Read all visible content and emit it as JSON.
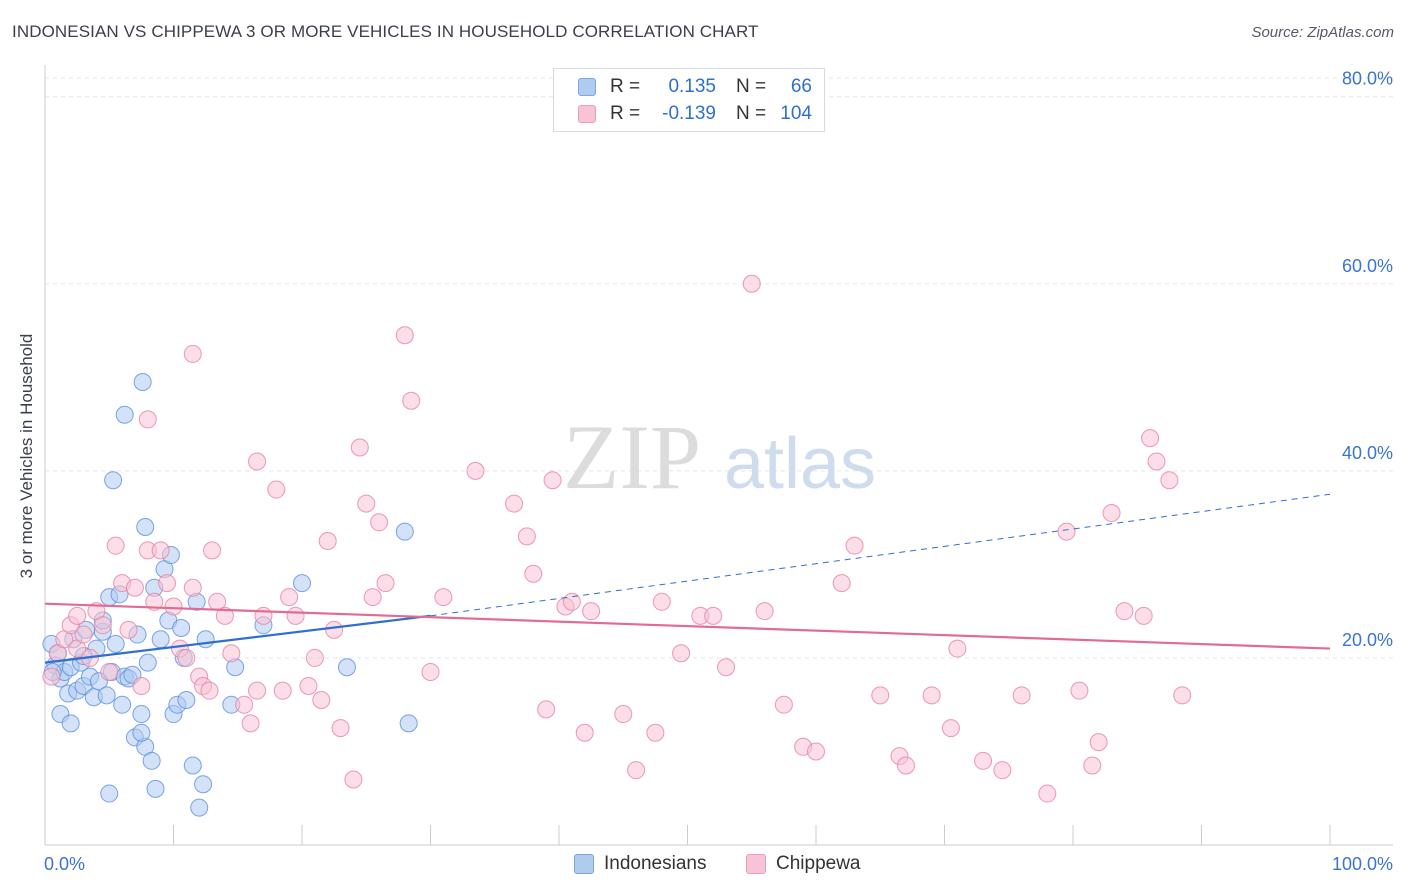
{
  "title": "INDONESIAN VS CHIPPEWA 3 OR MORE VEHICLES IN HOUSEHOLD CORRELATION CHART",
  "source": "Source: ZipAtlas.com",
  "watermark": {
    "zip": "ZIP",
    "atlas": "atlas"
  },
  "legend_top": {
    "rows": [
      {
        "r_label": "R =",
        "r_value": "0.135",
        "n_label": "N =",
        "n_value": "66",
        "color": "#aecbf0",
        "stroke": "#7fa6de"
      },
      {
        "r_label": "R =",
        "r_value": "-0.139",
        "n_label": "N =",
        "n_value": "104",
        "color": "#f8c3d4",
        "stroke": "#ee9cb8"
      }
    ]
  },
  "legend_bottom": [
    {
      "name": "Indonesians",
      "color": "#aecbf0",
      "stroke": "#7fa6de"
    },
    {
      "name": "Chippewa",
      "color": "#f8c3d4",
      "stroke": "#ee9cb8"
    }
  ],
  "chart_data": {
    "type": "scatter",
    "title": "INDONESIAN VS CHIPPEWA 3 OR MORE VEHICLES IN HOUSEHOLD CORRELATION CHART",
    "xlabel": "",
    "ylabel": "3 or more Vehicles in Household",
    "xlim": [
      0,
      100
    ],
    "ylim": [
      0,
      82
    ],
    "x_tick_labels": [
      "0.0%",
      "100.0%"
    ],
    "y_ticks": [
      20,
      40,
      60,
      80
    ],
    "y_tick_labels": [
      "20.0%",
      "40.0%",
      "60.0%",
      "80.0%"
    ],
    "grid": true,
    "legend_position": "top-center",
    "series": [
      {
        "name": "Indonesians",
        "color": "#5b8fe0",
        "fill": "#aecbf0",
        "trend": {
          "x0": 0,
          "y0": 19.5,
          "x1": 30,
          "y1": 24.5,
          "dash_to_x": 100,
          "dash_to_y": 37.5,
          "color": "#2f6fd0"
        },
        "points": [
          [
            0.5,
            21.5
          ],
          [
            0.8,
            19.2
          ],
          [
            1.0,
            20.5
          ],
          [
            1.2,
            17.8
          ],
          [
            1.5,
            18.5
          ],
          [
            1.8,
            16.2
          ],
          [
            2.0,
            19.0
          ],
          [
            2.2,
            22.0
          ],
          [
            2.5,
            16.5
          ],
          [
            2.8,
            19.5
          ],
          [
            3.0,
            17.0
          ],
          [
            3.2,
            23.0
          ],
          [
            3.5,
            18.0
          ],
          [
            3.8,
            15.8
          ],
          [
            4.0,
            21.0
          ],
          [
            4.2,
            17.5
          ],
          [
            4.5,
            22.8
          ],
          [
            4.8,
            16.0
          ],
          [
            5.0,
            26.5
          ],
          [
            5.2,
            18.5
          ],
          [
            5.5,
            21.5
          ],
          [
            5.8,
            26.8
          ],
          [
            6.0,
            15.0
          ],
          [
            6.2,
            18.0
          ],
          [
            6.5,
            17.8
          ],
          [
            6.8,
            18.2
          ],
          [
            7.0,
            11.5
          ],
          [
            7.2,
            22.5
          ],
          [
            7.5,
            14.0
          ],
          [
            7.8,
            10.5
          ],
          [
            8.0,
            19.5
          ],
          [
            8.3,
            9.0
          ],
          [
            8.6,
            6.0
          ],
          [
            9.0,
            22.0
          ],
          [
            9.3,
            29.5
          ],
          [
            9.6,
            24.0
          ],
          [
            10.0,
            14.0
          ],
          [
            10.3,
            15.0
          ],
          [
            10.6,
            23.2
          ],
          [
            11.0,
            15.5
          ],
          [
            11.5,
            8.5
          ],
          [
            12.0,
            4.0
          ],
          [
            12.3,
            6.5
          ],
          [
            7.5,
            12.0
          ],
          [
            5.0,
            5.5
          ],
          [
            5.3,
            39.0
          ],
          [
            6.2,
            46.0
          ],
          [
            7.6,
            49.5
          ],
          [
            7.8,
            34.0
          ],
          [
            9.8,
            31.0
          ],
          [
            11.8,
            26.0
          ],
          [
            12.5,
            22.0
          ],
          [
            14.5,
            15.0
          ],
          [
            14.8,
            19.0
          ],
          [
            17.0,
            23.5
          ],
          [
            20.0,
            28.0
          ],
          [
            23.5,
            19.0
          ],
          [
            28.0,
            33.5
          ],
          [
            28.3,
            13.0
          ],
          [
            1.2,
            14.0
          ],
          [
            2.0,
            13.0
          ],
          [
            0.6,
            18.5
          ],
          [
            3.0,
            20.2
          ],
          [
            4.5,
            24.0
          ],
          [
            8.5,
            27.5
          ],
          [
            10.8,
            20.0
          ]
        ]
      },
      {
        "name": "Chippewa",
        "color": "#e97fa2",
        "fill": "#f8c3d4",
        "trend": {
          "x0": 0,
          "y0": 25.8,
          "x1": 100,
          "y1": 21.0,
          "color": "#e26a93"
        },
        "points": [
          [
            0.5,
            18.0
          ],
          [
            1.0,
            20.5
          ],
          [
            1.5,
            22.0
          ],
          [
            2.0,
            23.5
          ],
          [
            2.5,
            21.0
          ],
          [
            3.0,
            22.5
          ],
          [
            3.5,
            20.0
          ],
          [
            4.0,
            25.0
          ],
          [
            4.5,
            23.5
          ],
          [
            5.0,
            18.5
          ],
          [
            5.5,
            32.0
          ],
          [
            6.0,
            28.0
          ],
          [
            6.5,
            23.0
          ],
          [
            7.0,
            27.5
          ],
          [
            7.5,
            17.0
          ],
          [
            8.0,
            31.5
          ],
          [
            8.5,
            26.0
          ],
          [
            9.0,
            31.5
          ],
          [
            9.5,
            28.0
          ],
          [
            10.0,
            25.5
          ],
          [
            10.5,
            21.0
          ],
          [
            11.0,
            20.0
          ],
          [
            11.5,
            27.5
          ],
          [
            12.0,
            18.0
          ],
          [
            12.3,
            17.0
          ],
          [
            12.8,
            16.5
          ],
          [
            13.0,
            31.5
          ],
          [
            13.4,
            26.0
          ],
          [
            14.0,
            24.5
          ],
          [
            14.5,
            20.5
          ],
          [
            15.5,
            15.0
          ],
          [
            16.0,
            13.0
          ],
          [
            16.5,
            16.5
          ],
          [
            17.0,
            24.5
          ],
          [
            18.0,
            38.0
          ],
          [
            18.5,
            16.5
          ],
          [
            19.0,
            26.5
          ],
          [
            19.5,
            24.5
          ],
          [
            20.5,
            17.0
          ],
          [
            21.0,
            20.0
          ],
          [
            21.5,
            15.5
          ],
          [
            22.0,
            32.5
          ],
          [
            22.5,
            23.0
          ],
          [
            23.0,
            12.5
          ],
          [
            24.0,
            7.0
          ],
          [
            24.5,
            42.5
          ],
          [
            25.0,
            36.5
          ],
          [
            25.5,
            26.5
          ],
          [
            26.0,
            34.5
          ],
          [
            26.5,
            28.0
          ],
          [
            28.0,
            54.5
          ],
          [
            28.5,
            47.5
          ],
          [
            30.0,
            18.5
          ],
          [
            31.0,
            26.5
          ],
          [
            33.5,
            40.0
          ],
          [
            36.5,
            36.5
          ],
          [
            37.5,
            33.0
          ],
          [
            38.0,
            29.0
          ],
          [
            39.0,
            14.5
          ],
          [
            39.5,
            39.0
          ],
          [
            40.5,
            25.5
          ],
          [
            41.0,
            26.0
          ],
          [
            42.0,
            12.0
          ],
          [
            42.5,
            25.0
          ],
          [
            45.0,
            14.0
          ],
          [
            46.0,
            8.0
          ],
          [
            47.5,
            12.0
          ],
          [
            48.0,
            26.0
          ],
          [
            49.5,
            20.5
          ],
          [
            51.0,
            24.5
          ],
          [
            52.0,
            24.5
          ],
          [
            53.0,
            19.0
          ],
          [
            55.0,
            60.0
          ],
          [
            56.0,
            25.0
          ],
          [
            57.5,
            15.0
          ],
          [
            59.0,
            10.5
          ],
          [
            60.0,
            10.0
          ],
          [
            62.0,
            28.0
          ],
          [
            63.0,
            32.0
          ],
          [
            65.0,
            16.0
          ],
          [
            66.5,
            9.5
          ],
          [
            67.0,
            8.5
          ],
          [
            69.0,
            16.0
          ],
          [
            70.5,
            12.5
          ],
          [
            71.0,
            21.0
          ],
          [
            73.0,
            9.0
          ],
          [
            74.5,
            8.0
          ],
          [
            76.0,
            16.0
          ],
          [
            78.0,
            5.5
          ],
          [
            79.5,
            33.5
          ],
          [
            80.5,
            16.5
          ],
          [
            81.5,
            8.5
          ],
          [
            82.0,
            11.0
          ],
          [
            83.0,
            35.5
          ],
          [
            84.0,
            25.0
          ],
          [
            85.5,
            24.5
          ],
          [
            86.0,
            43.5
          ],
          [
            86.5,
            41.0
          ],
          [
            87.5,
            39.0
          ],
          [
            88.5,
            16.0
          ],
          [
            2.5,
            24.5
          ],
          [
            8.0,
            45.5
          ],
          [
            11.5,
            52.5
          ],
          [
            16.5,
            41.0
          ]
        ]
      }
    ]
  }
}
